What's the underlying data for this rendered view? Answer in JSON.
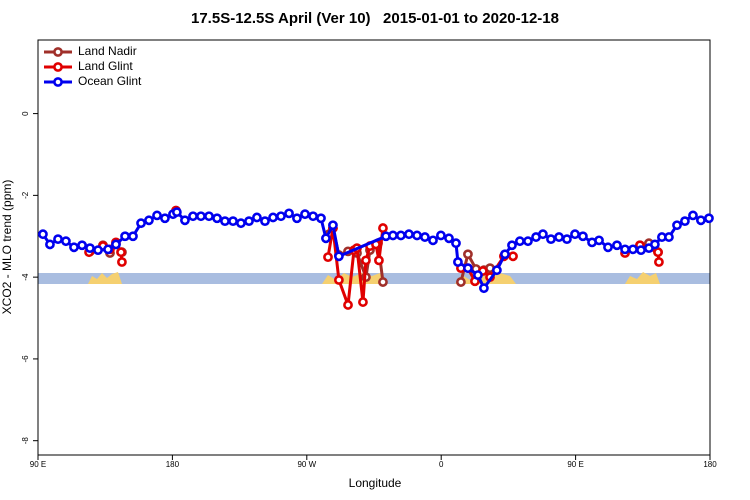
{
  "chart_data": {
    "type": "line",
    "title": "17.5S-12.5S April (Ver 10)   2015-01-01 to 2020-12-18",
    "x_label": "Longitude",
    "y_label": "XCO2 - MLO trend (ppm)",
    "xlim": [
      90,
      540
    ],
    "ylim": [
      -8.35,
      1.8
    ],
    "xticks": [
      {
        "value": 90,
        "label": "90 E"
      },
      180,
      {
        "value": 270,
        "label": "90 W"
      },
      {
        "value": 360,
        "label": "0"
      },
      {
        "value": 450,
        "label": "90 E"
      },
      {
        "value": 540,
        "label": "180"
      }
    ],
    "yticks": [
      0,
      -2,
      -4,
      -6,
      -8
    ],
    "legend": "top-left",
    "series": [
      {
        "name": "Land Nadir",
        "color": "#a0302a",
        "x": [
          124.8,
          133.5,
          138.2,
          142.2,
          146.2,
          230,
          284.9,
          287.5,
          291.5,
          297.6,
          303.6,
          309.6,
          312.3,
          317.7,
          321,
          350,
          373.2,
          377.9,
          383.3,
          388.6,
          392.7,
          450,
          493.1,
          499.1,
          505.2
        ],
        "values": [
          -3.37,
          -3.22,
          -3.41,
          -3.19,
          -3.39,
          null,
          -2.95,
          -2.8,
          -3.46,
          -3.37,
          -3.41,
          -4.0,
          -3.34,
          -3.17,
          -4.12,
          null,
          -4.12,
          -3.44,
          -3.8,
          -3.83,
          -3.78,
          null,
          -3.22,
          -3.17,
          -3.39
        ]
      },
      {
        "name": "Land Glint",
        "color": "#e00000",
        "x": [
          124.2,
          133.5,
          138.2,
          142.2,
          145.6,
          146.2,
          160,
          182.4,
          230,
          284.2,
          287.5,
          291.5,
          297.6,
          301.6,
          303.6,
          307.6,
          309.6,
          312.3,
          316.3,
          318.3,
          321,
          350,
          373.2,
          377.9,
          382.6,
          387.9,
          392.7,
          402,
          408.1,
          450,
          483.1,
          493.1,
          505.2,
          505.8
        ],
        "values": [
          -3.39,
          -3.24,
          -3.32,
          -3.15,
          -3.39,
          -3.63,
          null,
          -2.37,
          null,
          -3.51,
          -2.8,
          -4.07,
          -4.68,
          -3.34,
          -3.29,
          -4.61,
          -3.59,
          -3.24,
          -3.2,
          -3.59,
          -2.8,
          null,
          -3.78,
          -3.78,
          -4.1,
          -3.85,
          -4.0,
          -3.49,
          -3.49,
          null,
          -3.41,
          -3.22,
          -3.39,
          -3.63
        ]
      },
      {
        "name": "Ocean Glint",
        "color": "#0000ee",
        "x": [
          93.3,
          98,
          103.4,
          108.7,
          114.1,
          119.5,
          124.8,
          130.2,
          136.9,
          142.2,
          148.3,
          153.6,
          159,
          164.3,
          169.7,
          175,
          180.4,
          183,
          188.4,
          193.8,
          199.1,
          204.5,
          209.9,
          215.2,
          220.6,
          225.9,
          231.3,
          236.6,
          242,
          247.4,
          252.7,
          258.1,
          263.4,
          268.8,
          274.2,
          279.5,
          282.8,
          287.5,
          291.5,
          323,
          327.7,
          333,
          338.4,
          343.8,
          349.1,
          354.5,
          359.8,
          365.2,
          369.9,
          371.2,
          377.9,
          384.6,
          388.6,
          397.3,
          402.7,
          407.4,
          412.7,
          418.1,
          423.5,
          428.1,
          433.5,
          438.9,
          444.2,
          449.6,
          454.9,
          461,
          465.7,
          471.7,
          477.7,
          483.1,
          488.4,
          493.8,
          499.1,
          503.1,
          507.8,
          512.5,
          517.9,
          523.2,
          528.6,
          533.9,
          539.3
        ],
        "values": [
          -2.95,
          -3.2,
          -3.07,
          -3.12,
          -3.27,
          -3.22,
          -3.29,
          -3.34,
          -3.32,
          -3.2,
          -3.0,
          -3.0,
          -2.68,
          -2.61,
          -2.49,
          -2.56,
          -2.46,
          -2.41,
          -2.61,
          -2.51,
          -2.51,
          -2.51,
          -2.56,
          -2.63,
          -2.63,
          -2.68,
          -2.63,
          -2.54,
          -2.63,
          -2.54,
          -2.51,
          -2.44,
          -2.56,
          -2.46,
          -2.51,
          -2.56,
          -3.05,
          -2.73,
          -3.49,
          -3.0,
          -2.98,
          -2.98,
          -2.95,
          -2.98,
          -3.02,
          -3.1,
          -2.98,
          -3.05,
          -3.17,
          -3.63,
          -3.78,
          -3.95,
          -4.27,
          -3.83,
          -3.44,
          -3.22,
          -3.12,
          -3.12,
          -3.02,
          -2.95,
          -3.07,
          -3.02,
          -3.07,
          -2.95,
          -3.0,
          -3.15,
          -3.1,
          -3.27,
          -3.22,
          -3.32,
          -3.32,
          -3.34,
          -3.29,
          -3.2,
          -3.02,
          -3.02,
          -2.73,
          -2.63,
          -2.49,
          -2.61,
          -2.56
        ]
      }
    ]
  }
}
